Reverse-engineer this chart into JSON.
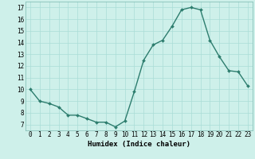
{
  "x": [
    0,
    1,
    2,
    3,
    4,
    5,
    6,
    7,
    8,
    9,
    10,
    11,
    12,
    13,
    14,
    15,
    16,
    17,
    18,
    19,
    20,
    21,
    22,
    23
  ],
  "y": [
    10,
    9,
    8.8,
    8.5,
    7.8,
    7.8,
    7.5,
    7.2,
    7.2,
    6.8,
    7.3,
    9.8,
    12.5,
    13.8,
    14.2,
    15.4,
    16.8,
    17.0,
    16.8,
    14.2,
    12.8,
    11.6,
    11.5,
    10.3
  ],
  "line_color": "#2d7d6e",
  "marker": "D",
  "marker_size": 2.0,
  "background_color": "#cef0ea",
  "grid_color": "#aaddd6",
  "xlabel": "Humidex (Indice chaleur)",
  "xlim": [
    -0.5,
    23.5
  ],
  "ylim": [
    6.5,
    17.5
  ],
  "yticks": [
    7,
    8,
    9,
    10,
    11,
    12,
    13,
    14,
    15,
    16,
    17
  ],
  "xticks": [
    0,
    1,
    2,
    3,
    4,
    5,
    6,
    7,
    8,
    9,
    10,
    11,
    12,
    13,
    14,
    15,
    16,
    17,
    18,
    19,
    20,
    21,
    22,
    23
  ],
  "xlabel_fontsize": 6.5,
  "tick_fontsize": 5.5,
  "line_width": 1.0
}
